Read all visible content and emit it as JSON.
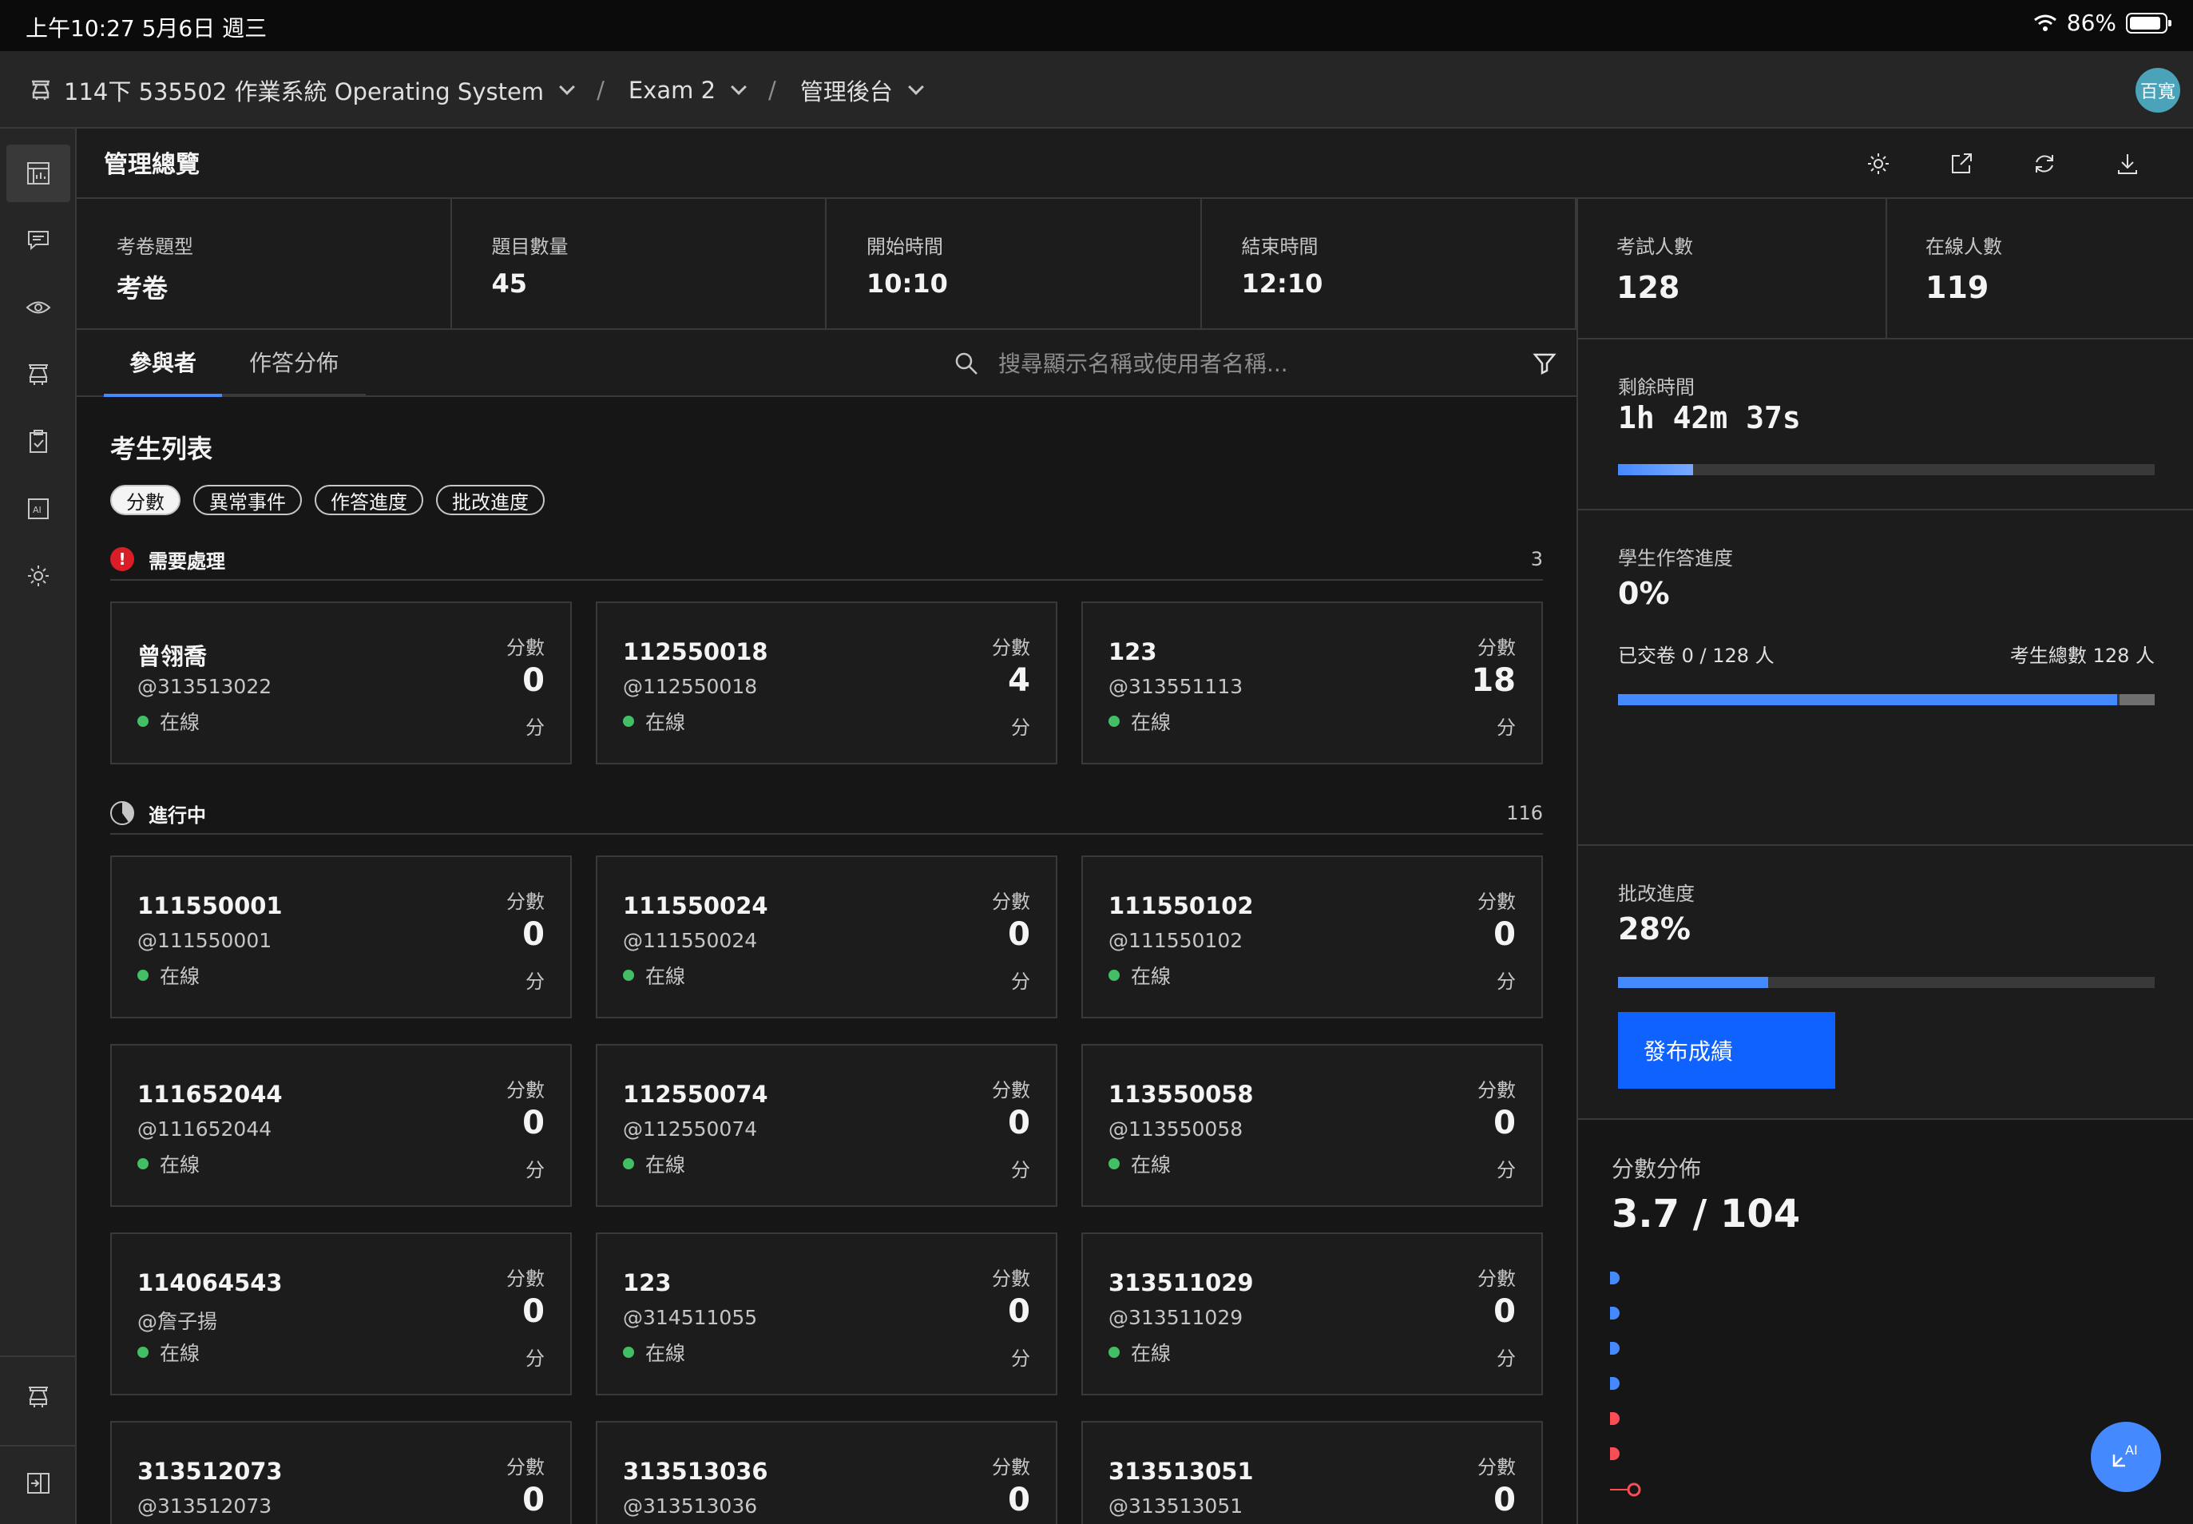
{
  "status_bar": {
    "time": "上午10:27  5月6日 週三",
    "battery": "86%"
  },
  "header": {
    "course": "114下 535502 作業系統 Operating System",
    "exam": "Exam 2",
    "section": "管理後台",
    "avatar": "百寬"
  },
  "page": {
    "title": "管理總覽"
  },
  "stats": [
    {
      "label": "考卷題型",
      "value": "考卷"
    },
    {
      "label": "題目數量",
      "value": "45"
    },
    {
      "label": "開始時間",
      "value": "10:10"
    },
    {
      "label": "結束時間",
      "value": "12:10"
    }
  ],
  "right_stats": [
    {
      "label": "考試人數",
      "value": "128"
    },
    {
      "label": "在線人數",
      "value": "119"
    }
  ],
  "tabs": [
    "參與者",
    "作答分佈"
  ],
  "search": {
    "placeholder": "搜尋顯示名稱或使用者名稱..."
  },
  "list": {
    "title": "考生列表",
    "chips": [
      "分數",
      "異常事件",
      "作答進度",
      "批改進度"
    ]
  },
  "sections": {
    "attention": {
      "label": "需要處理",
      "count": "3",
      "icon": "!"
    },
    "in_progress": {
      "label": "進行中",
      "count": "116"
    }
  },
  "card_labels": {
    "score_label": "分數",
    "unit": "分",
    "online": "在線"
  },
  "attention_cards": [
    {
      "name": "曾翎喬",
      "uid": "@313513022",
      "score": "0"
    },
    {
      "name": "112550018",
      "uid": "@112550018",
      "score": "4"
    },
    {
      "name": "123",
      "uid": "@313551113",
      "score": "18"
    }
  ],
  "progress_cards": [
    {
      "name": "111550001",
      "uid": "@111550001",
      "score": "0"
    },
    {
      "name": "111550024",
      "uid": "@111550024",
      "score": "0"
    },
    {
      "name": "111550102",
      "uid": "@111550102",
      "score": "0"
    },
    {
      "name": "111652044",
      "uid": "@111652044",
      "score": "0"
    },
    {
      "name": "112550074",
      "uid": "@112550074",
      "score": "0"
    },
    {
      "name": "113550058",
      "uid": "@113550058",
      "score": "0"
    },
    {
      "name": "114064543",
      "uid": "@詹子揚",
      "score": "0"
    },
    {
      "name": "123",
      "uid": "@314511055",
      "score": "0"
    },
    {
      "name": "313511029",
      "uid": "@313511029",
      "score": "0"
    },
    {
      "name": "313512073",
      "uid": "@313512073",
      "score": "0"
    },
    {
      "name": "313513036",
      "uid": "@313513036",
      "score": "0"
    },
    {
      "name": "313513051",
      "uid": "@313513051",
      "score": "0"
    }
  ],
  "remaining": {
    "label": "剩餘時間",
    "value": "1h 42m 37s",
    "progress": 0.14
  },
  "answer_progress": {
    "label": "學生作答進度",
    "value": "0%",
    "submitted": "已交卷 0 / 128 人",
    "total": "考生總數 128 人",
    "online_fraction": 0.93
  },
  "grading": {
    "label": "批改進度",
    "value": "28%",
    "progress": 0.28,
    "publish_label": "發布成績"
  },
  "distribution": {
    "label": "分數分佈",
    "value": "3.7 / 104"
  },
  "fab": {
    "label": "AI"
  },
  "colors": {
    "accent": "#4589ff",
    "online": "#42be65",
    "alert": "#da1e28"
  }
}
